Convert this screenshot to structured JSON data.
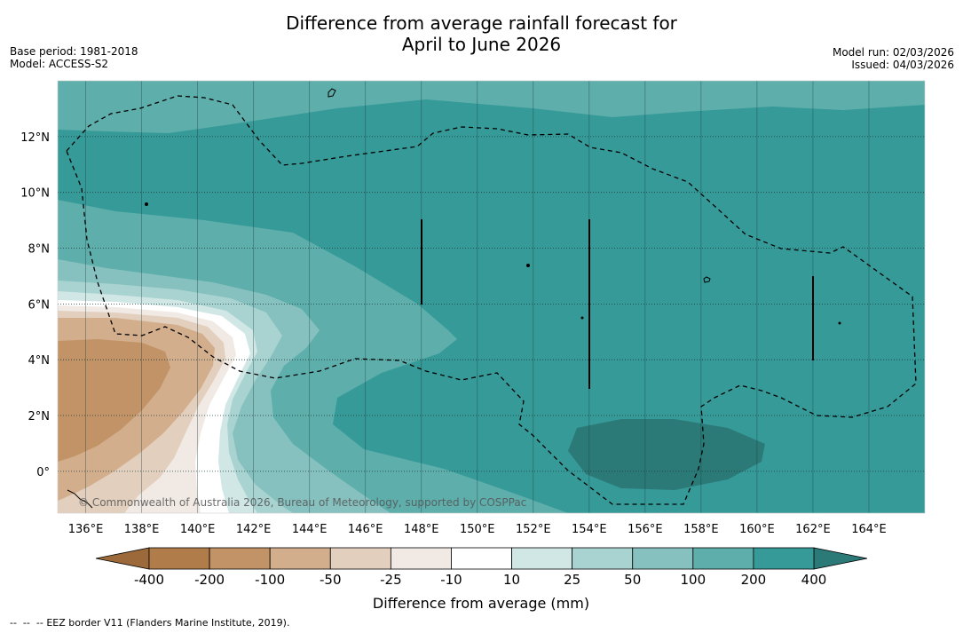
{
  "title": {
    "line1": "Difference from average rainfall forecast for",
    "line2": "April to June 2026"
  },
  "meta_left": {
    "base_period": "Base period: 1981-2018",
    "model": "Model: ACCESS-S2"
  },
  "meta_right": {
    "model_run": "Model run: 02/03/2026",
    "issued": "Issued: 04/03/2026"
  },
  "map": {
    "lat_labels": [
      "12°N",
      "10°N",
      "8°N",
      "6°N",
      "4°N",
      "2°N",
      "0°"
    ],
    "lon_labels": [
      "136°E",
      "138°E",
      "140°E",
      "142°E",
      "144°E",
      "146°E",
      "148°E",
      "150°E",
      "152°E",
      "154°E",
      "156°E",
      "158°E",
      "160°E",
      "162°E",
      "164°E"
    ],
    "copyright": "© Commonwealth of Australia 2026, Bureau of Meteorology, supported by COSPPac",
    "extent": {
      "lon_min": 135,
      "lon_max": 166,
      "lat_min": -1.5,
      "lat_max": 14
    },
    "colors": {
      "brown_dark": "#b07d4a",
      "brown_mid": "#c29366",
      "brown_light": "#d2ae8d",
      "tan": "#e3cfbd",
      "cream": "#f1e9e4",
      "white": "#ffffff",
      "teal_pale": "#d0e7e6",
      "teal_light": "#a9d3d1",
      "teal_mid": "#86c1bf",
      "teal_medium": "#5eaeab",
      "teal_strong": "#369a98",
      "teal_dark": "#2b7a78"
    }
  },
  "legend": {
    "labels": [
      "-400",
      "-200",
      "-100",
      "-50",
      "-25",
      "-10",
      "10",
      "25",
      "50",
      "100",
      "200",
      "400"
    ],
    "colors": [
      "#b07d4a",
      "#c29366",
      "#d2ae8d",
      "#e3cfbd",
      "#f1e9e4",
      "#ffffff",
      "#d0e7e6",
      "#a9d3d1",
      "#86c1bf",
      "#5eaeab",
      "#369a98"
    ],
    "low_color": "#9c6a3a",
    "high_color": "#2b7a78",
    "title": "Difference from average (mm)"
  },
  "footer": {
    "marker": "--  --  --",
    "text": "EEZ border V11 (Flanders Marine Institute, 2019)."
  }
}
